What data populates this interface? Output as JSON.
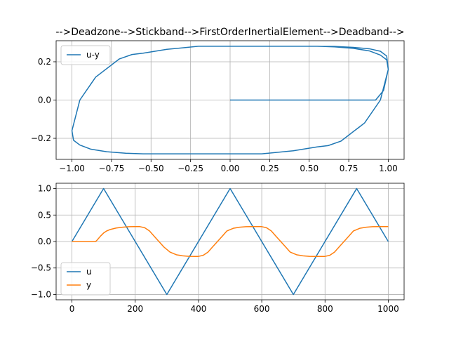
{
  "colors": {
    "u": "#1f77b4",
    "y": "#ff7f0e",
    "grid": "#b0b0b0",
    "axes": "#000000",
    "legend_border": "#cccccc"
  },
  "chart_data": [
    {
      "type": "line",
      "title": "-->Deadzone-->Stickband-->FirstOrderInertialElement-->Deadband-->",
      "xlabel": "",
      "ylabel": "",
      "xlim": [
        -1.1,
        1.1
      ],
      "ylim": [
        -0.31,
        0.31
      ],
      "xticks": [
        -1.0,
        -0.75,
        -0.5,
        -0.25,
        0.0,
        0.25,
        0.5,
        0.75,
        1.0
      ],
      "xtick_labels": [
        "−1.00",
        "−0.75",
        "−0.50",
        "−0.25",
        "0.00",
        "0.25",
        "0.50",
        "0.75",
        "1.00"
      ],
      "yticks": [
        -0.2,
        0.0,
        0.2
      ],
      "ytick_labels": [
        "−0.2",
        "0.0",
        "0.2"
      ],
      "grid": true,
      "legend_position": "upper-left",
      "series": [
        {
          "name": "u-y",
          "color": "#1f77b4",
          "description_of_shape": "hysteresis loop of y against u",
          "x": [
            0.0,
            0.3,
            0.6,
            0.92,
            0.97,
            1.0,
            0.99,
            0.95,
            0.88,
            0.78,
            0.66,
            0.55,
            0.45,
            0.3,
            0.0,
            -0.2,
            -0.4,
            -0.55,
            -0.62,
            -0.7,
            -0.85,
            -0.95,
            -1.0,
            -0.99,
            -0.95,
            -0.88,
            -0.78,
            -0.66,
            -0.55,
            -0.45,
            -0.3,
            0.0,
            0.2,
            0.4,
            0.55,
            0.62,
            0.7,
            0.85,
            0.95,
            1.0,
            0.99,
            0.95,
            0.88,
            0.78,
            0.66,
            0.55,
            0.45,
            0.3,
            0.0,
            -0.2,
            -0.4,
            -0.55,
            -0.62,
            -0.7,
            -0.85,
            -0.95,
            -1.0
          ],
          "y": [
            0.0,
            0.0,
            0.0,
            0.0,
            0.05,
            0.16,
            0.23,
            0.255,
            0.268,
            0.275,
            0.28,
            0.281,
            0.281,
            0.281,
            0.281,
            0.281,
            0.265,
            0.245,
            0.238,
            0.215,
            0.12,
            0.0,
            -0.16,
            -0.21,
            -0.235,
            -0.257,
            -0.27,
            -0.278,
            -0.281,
            -0.281,
            -0.281,
            -0.281,
            -0.281,
            -0.265,
            -0.245,
            -0.238,
            -0.215,
            -0.12,
            0.0,
            0.16,
            0.21,
            0.235,
            0.257,
            0.27,
            0.278,
            0.281,
            0.281,
            0.281,
            0.281,
            0.281,
            0.265,
            0.245,
            0.238,
            0.215,
            0.12,
            0.0,
            -0.16
          ]
        }
      ]
    },
    {
      "type": "line",
      "title": "",
      "xlabel": "",
      "ylabel": "",
      "xlim": [
        -50,
        1050
      ],
      "ylim": [
        -1.1,
        1.1
      ],
      "xticks": [
        0,
        200,
        400,
        600,
        800,
        1000
      ],
      "xtick_labels": [
        "0",
        "200",
        "400",
        "600",
        "800",
        "1000"
      ],
      "yticks": [
        -1.0,
        -0.5,
        0.0,
        0.5,
        1.0
      ],
      "ytick_labels": [
        "−1.0",
        "−0.5",
        "0.0",
        "0.5",
        "1.0"
      ],
      "grid": true,
      "legend_position": "lower-left",
      "series": [
        {
          "name": "u",
          "color": "#1f77b4",
          "x": [
            0,
            100,
            200,
            300,
            400,
            500,
            600,
            700,
            800,
            900,
            1000
          ],
          "y": [
            0.0,
            1.0,
            0.0,
            -1.0,
            0.0,
            1.0,
            0.0,
            -1.0,
            0.0,
            1.0,
            0.0
          ]
        },
        {
          "name": "y",
          "color": "#ff7f0e",
          "x": [
            0,
            75,
            80,
            90,
            100,
            110,
            120,
            140,
            160,
            180,
            200,
            215,
            230,
            245,
            260,
            275,
            290,
            310,
            330,
            350,
            370,
            390,
            400,
            415,
            430,
            445,
            460,
            475,
            490,
            510,
            530,
            550,
            570,
            590,
            600,
            615,
            630,
            645,
            660,
            675,
            690,
            710,
            730,
            750,
            770,
            790,
            800,
            815,
            830,
            845,
            860,
            875,
            890,
            910,
            930,
            950,
            970,
            990,
            1000
          ],
          "y": [
            0.0,
            0.0,
            0.03,
            0.1,
            0.16,
            0.2,
            0.225,
            0.255,
            0.27,
            0.28,
            0.281,
            0.281,
            0.26,
            0.2,
            0.1,
            0.0,
            -0.1,
            -0.2,
            -0.25,
            -0.27,
            -0.28,
            -0.281,
            -0.281,
            -0.26,
            -0.2,
            -0.1,
            0.0,
            0.1,
            0.2,
            0.25,
            0.27,
            0.28,
            0.281,
            0.281,
            0.281,
            0.26,
            0.2,
            0.1,
            0.0,
            -0.1,
            -0.2,
            -0.25,
            -0.27,
            -0.28,
            -0.281,
            -0.281,
            -0.281,
            -0.26,
            -0.2,
            -0.1,
            0.0,
            0.1,
            0.2,
            0.25,
            0.27,
            0.28,
            0.281,
            0.281,
            0.281
          ]
        }
      ]
    }
  ]
}
